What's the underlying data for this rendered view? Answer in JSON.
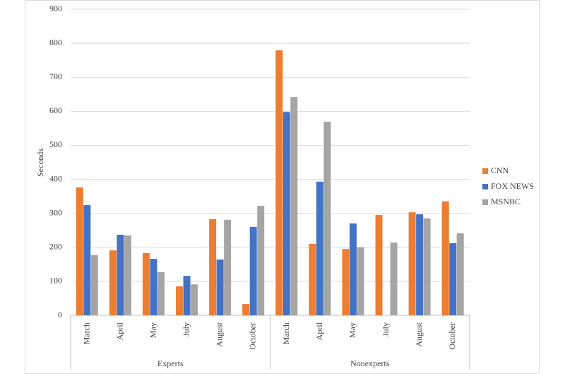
{
  "chart_data": {
    "type": "bar",
    "y_label": "Seconds",
    "groups": [
      {
        "name": "Experts",
        "categories": [
          "March",
          "April",
          "May",
          "July",
          "August",
          "October"
        ]
      },
      {
        "name": "Nonexperts",
        "categories": [
          "March",
          "April",
          "May",
          "July",
          "August",
          "October"
        ]
      }
    ],
    "series": [
      {
        "name": "CNN",
        "color": "#ed7d31",
        "values": [
          376,
          191,
          183,
          85,
          283,
          33,
          779,
          210,
          195,
          295,
          303,
          335
        ]
      },
      {
        "name": "FOX NEWS",
        "color": "#4472c4",
        "values": [
          324,
          237,
          166,
          116,
          164,
          260,
          598,
          393,
          270,
          null,
          297,
          212
        ]
      },
      {
        "name": "MSNBC",
        "color": "#a5a5a5",
        "values": [
          177,
          235,
          127,
          91,
          281,
          322,
          642,
          569,
          200,
          214,
          285,
          241
        ]
      }
    ],
    "ylim": [
      0,
      900
    ],
    "yticks": [
      0,
      100,
      200,
      300,
      400,
      500,
      600,
      700,
      800,
      900
    ],
    "grid": true,
    "legend": "right"
  }
}
